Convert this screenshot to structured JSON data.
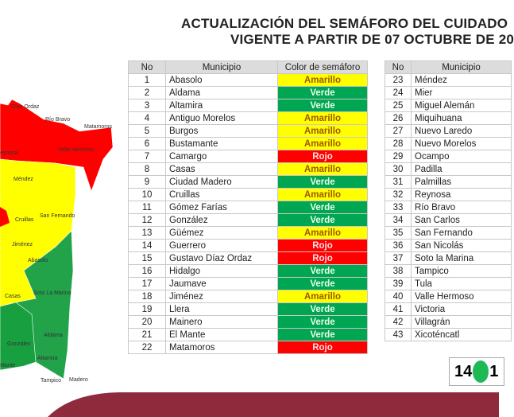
{
  "title": {
    "line1": "ACTUALIZACIÓN DEL SEMÁFORO DEL CUIDADO",
    "line2": "VIGENTE A PARTIR DE 07 OCTUBRE DE 20"
  },
  "table_headers": {
    "no": "No",
    "municipio": "Municipio",
    "color": "Color de semáforo"
  },
  "colors": {
    "Amarillo": "#ffff00",
    "Verde": "#00a651",
    "Rojo": "#ff0000",
    "band": "#8e2a3c"
  },
  "rows_left": [
    {
      "no": "1",
      "m": "Abasolo",
      "c": "Amarillo"
    },
    {
      "no": "2",
      "m": "Aldama",
      "c": "Verde"
    },
    {
      "no": "3",
      "m": "Altamira",
      "c": "Verde"
    },
    {
      "no": "4",
      "m": "Antiguo Morelos",
      "c": "Amarillo"
    },
    {
      "no": "5",
      "m": "Burgos",
      "c": "Amarillo"
    },
    {
      "no": "6",
      "m": "Bustamante",
      "c": "Amarillo"
    },
    {
      "no": "7",
      "m": "Camargo",
      "c": "Rojo"
    },
    {
      "no": "8",
      "m": "Casas",
      "c": "Amarillo"
    },
    {
      "no": "9",
      "m": "Ciudad Madero",
      "c": "Verde"
    },
    {
      "no": "10",
      "m": "Cruillas",
      "c": "Amarillo"
    },
    {
      "no": "11",
      "m": "Gómez Farías",
      "c": "Verde"
    },
    {
      "no": "12",
      "m": "González",
      "c": "Verde"
    },
    {
      "no": "13",
      "m": "Güémez",
      "c": "Amarillo"
    },
    {
      "no": "14",
      "m": "Guerrero",
      "c": "Rojo"
    },
    {
      "no": "15",
      "m": "Gustavo Díaz Ordaz",
      "c": "Rojo"
    },
    {
      "no": "16",
      "m": "Hidalgo",
      "c": "Verde"
    },
    {
      "no": "17",
      "m": "Jaumave",
      "c": "Verde"
    },
    {
      "no": "18",
      "m": "Jiménez",
      "c": "Amarillo"
    },
    {
      "no": "19",
      "m": "Llera",
      "c": "Verde"
    },
    {
      "no": "20",
      "m": "Mainero",
      "c": "Verde"
    },
    {
      "no": "21",
      "m": "El Mante",
      "c": "Verde"
    },
    {
      "no": "22",
      "m": "Matamoros",
      "c": "Rojo"
    }
  ],
  "rows_right": [
    {
      "no": "23",
      "m": "Méndez"
    },
    {
      "no": "24",
      "m": "Mier"
    },
    {
      "no": "25",
      "m": "Miguel Alemán"
    },
    {
      "no": "26",
      "m": "Miquihuana"
    },
    {
      "no": "27",
      "m": "Nuevo Laredo"
    },
    {
      "no": "28",
      "m": "Nuevo Morelos"
    },
    {
      "no": "29",
      "m": "Ocampo"
    },
    {
      "no": "30",
      "m": "Padilla"
    },
    {
      "no": "31",
      "m": "Palmillas"
    },
    {
      "no": "32",
      "m": "Reynosa"
    },
    {
      "no": "33",
      "m": "Río Bravo"
    },
    {
      "no": "34",
      "m": "San Carlos"
    },
    {
      "no": "35",
      "m": "San Fernando"
    },
    {
      "no": "36",
      "m": "San Nicolás"
    },
    {
      "no": "37",
      "m": "Soto la Marina"
    },
    {
      "no": "38",
      "m": "Tampico"
    },
    {
      "no": "39",
      "m": "Tula"
    },
    {
      "no": "40",
      "m": "Valle Hermoso"
    },
    {
      "no": "41",
      "m": "Victoria"
    },
    {
      "no": "42",
      "m": "Villagrán"
    },
    {
      "no": "43",
      "m": "Xicoténcatl"
    }
  ],
  "map_labels": [
    "Díaz Ordaz",
    "Río Bravo",
    "Matamoros",
    "eynosa",
    "Valle Hermoso",
    "Méndez",
    "Cruillas",
    "San Fernando",
    "Jiménez",
    "Abasolo",
    "Soto La Marina",
    "Casas",
    "González",
    "Aldama",
    "Altamira",
    "Mante",
    "Tampico",
    "Madero"
  ],
  "counter": {
    "green_count": "14",
    "next": "1"
  }
}
